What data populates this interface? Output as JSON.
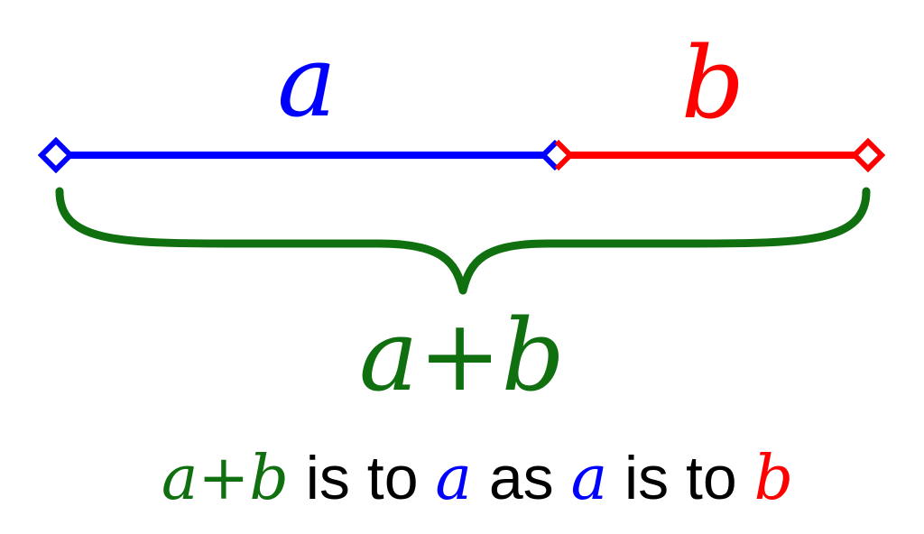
{
  "labels": {
    "a_label": "a",
    "b_label": "b",
    "sum_label": "a+b"
  },
  "caption": {
    "part1": "a+b",
    "part2": " is to ",
    "part3": "a",
    "part4": " as ",
    "part5": "a",
    "part6": " is to ",
    "part7": "b"
  },
  "colors": {
    "a": "#0000ff",
    "b": "#ff0000",
    "sum": "#107010",
    "text": "#000000"
  }
}
